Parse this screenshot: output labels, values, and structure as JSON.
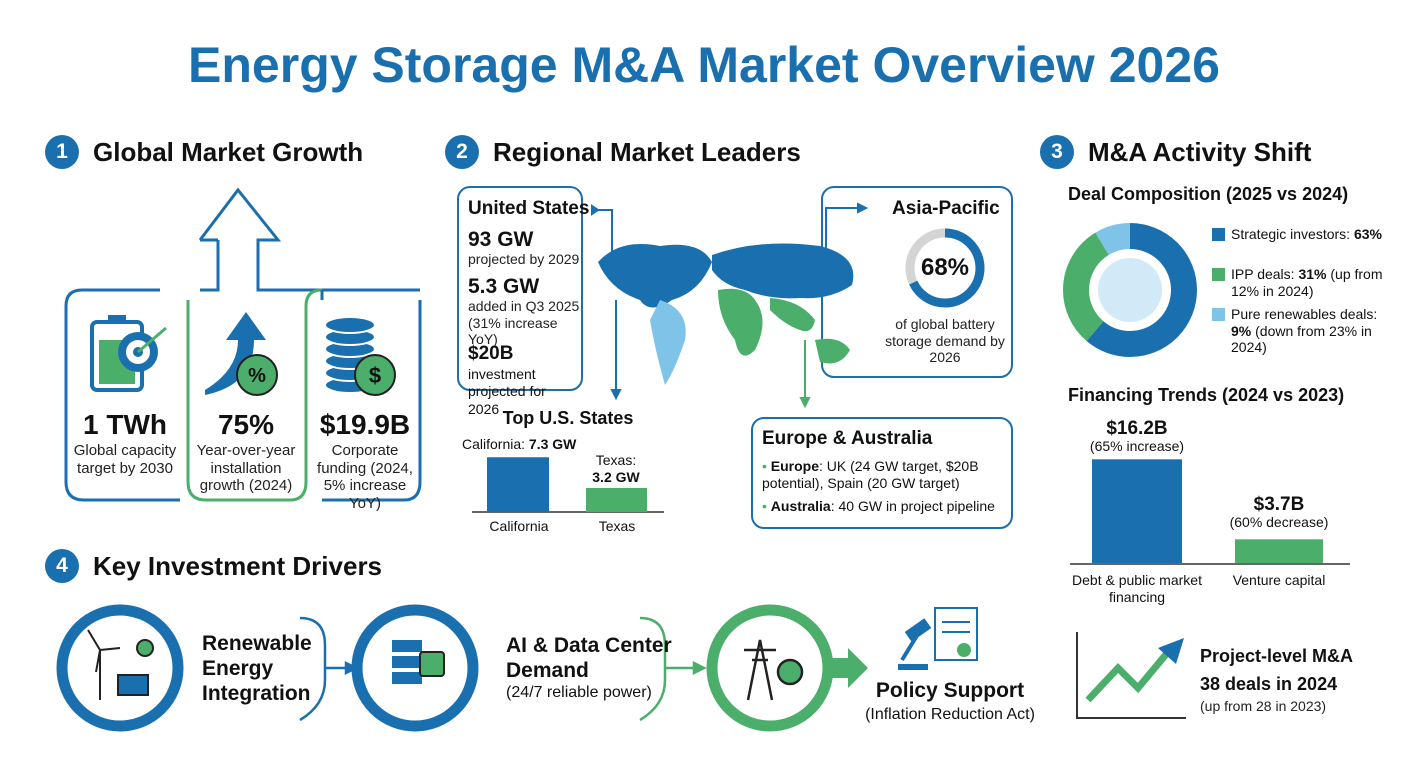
{
  "title": "Energy Storage M&A Market Overview 2026",
  "global_growth": {
    "number": "1",
    "heading": "Global Market Growth",
    "stats": [
      {
        "value": "1 TWh",
        "label": "Global capacity target by 2030"
      },
      {
        "value": "75%",
        "label": "Year-over-year installation growth (2024)"
      },
      {
        "value": "$19.9B",
        "label": "Corporate funding (2024, 5% increase YoY)"
      }
    ]
  },
  "regional": {
    "number": "2",
    "heading": "Regional Market Leaders",
    "us": {
      "name": "United States",
      "items": [
        {
          "value": "93 GW",
          "text": "projected by 2029"
        },
        {
          "value": "5.3 GW",
          "text": "added in Q3 2025 (31% increase YoY)"
        },
        {
          "value": "$20B",
          "text": "investment projected for 2026"
        }
      ]
    },
    "top_states": {
      "title": "Top U.S. States",
      "bars": [
        {
          "label": "California:",
          "value_label": "7.3 GW",
          "value": 7.3,
          "category": "California"
        },
        {
          "label": "Texas:",
          "value_label": "3.2 GW",
          "value": 3.2,
          "category": "Texas"
        }
      ]
    },
    "asia": {
      "name": "Asia-Pacific",
      "value": 68,
      "value_label": "68%",
      "text": "of global battery storage demand by 2026"
    },
    "europe": {
      "name": "Europe & Australia",
      "items": [
        {
          "label": "Europe",
          "text": ": UK (24 GW target, $20B potential), Spain (20 GW target)"
        },
        {
          "label": "Australia",
          "text": ": 40 GW in project pipeline"
        }
      ]
    }
  },
  "ma_activity": {
    "number": "3",
    "heading": "M&A Activity Shift",
    "composition": {
      "title": "Deal Composition (2025 vs 2024)",
      "segments": [
        {
          "label": "Strategic investors:",
          "value": 63,
          "value_label": "63%",
          "note": "",
          "color": "#1a6faf"
        },
        {
          "label": "IPP deals:",
          "value": 31,
          "value_label": "31%",
          "note": "(up from 12% in 2024)",
          "color": "#4cae6b"
        },
        {
          "label": "Pure renewables deals:",
          "value": 9,
          "value_label": "9%",
          "note": "(down from 23% in 2024)",
          "color": "#7fc4e8"
        }
      ]
    },
    "financing": {
      "title": "Financing Trends (2024 vs 2023)",
      "bars": [
        {
          "value": 16.2,
          "value_label": "$16.2B",
          "note": "(65% increase)",
          "category": "Debt & public market financing",
          "color": "#1a6faf"
        },
        {
          "value": 3.7,
          "value_label": "$3.7B",
          "note": "(60% decrease)",
          "category": "Venture capital",
          "color": "#4cae6b"
        }
      ]
    },
    "project": {
      "title": "Project-level M&A",
      "value": "38 deals in 2024",
      "note": "(up from 28 in 2023)"
    }
  },
  "drivers": {
    "number": "4",
    "heading": "Key Investment Drivers",
    "items": [
      {
        "title": "Renewable Energy Integration"
      },
      {
        "title": "AI & Data Center Demand",
        "note": "(24/7 reliable power)"
      },
      {
        "title": "Policy Support",
        "note": "(Inflation Reduction Act)"
      }
    ]
  }
}
